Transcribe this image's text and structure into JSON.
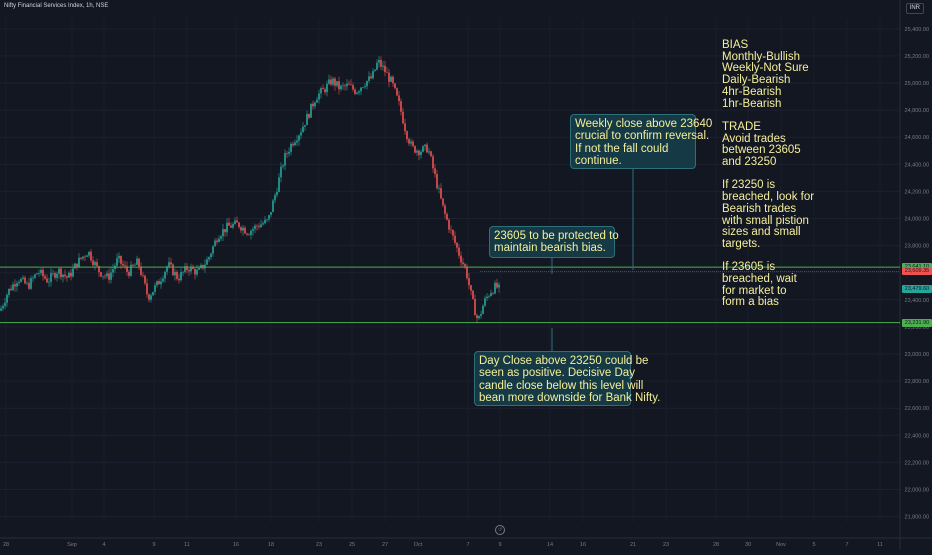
{
  "header": {
    "title": "Nifty Financial Services Index, 1h, NSE",
    "currency": "INR"
  },
  "colors": {
    "background": "#131722",
    "up": "#26a69a",
    "down": "#ef5350",
    "level_line": "#4caf50",
    "note_bg": "#153a45",
    "note_text": "#f5ef9a"
  },
  "notes": {
    "weekly": [
      "Weekly close above 23640",
      "crucial to confirm reversal.",
      "If not the fall could",
      "continue."
    ],
    "protect": [
      "23605 to be protected to",
      "maintain bearish bias."
    ],
    "day": [
      "Day Close above 23250 could be",
      "seen as positive. Decisive Day",
      "candle close below this level will",
      "bean more downside for Bank Nifty."
    ]
  },
  "bias_lines": [
    "BIAS",
    "Monthly-Bullish",
    "Weekly-Not Sure",
    "Daily-Bearish",
    "4hr-Bearish",
    "1hr-Bearish",
    "",
    "TRADE",
    "Avoid trades",
    "between 23605",
    "and 23250",
    "",
    "If 23250 is",
    "breached, look for",
    "Bearish trades",
    "with small pistion",
    "sizes and small",
    "targets.",
    "",
    "If 23605 is",
    "breached, wait",
    "for market to",
    "form a bias"
  ],
  "chart_data": {
    "type": "candlestick",
    "y_ticks": [
      "25,400.00",
      "25,200.00",
      "25,000.00",
      "24,800.00",
      "24,600.00",
      "24,400.00",
      "24,200.00",
      "24,000.00",
      "23,800.00",
      "23,600.00",
      "23,400.00",
      "23,200.00",
      "23,000.00",
      "22,800.00",
      "22,600.00",
      "22,400.00",
      "22,200.00",
      "22,000.00",
      "21,800.00"
    ],
    "y_tick_values": [
      25400,
      25200,
      25000,
      24800,
      24600,
      24400,
      24200,
      24000,
      23800,
      23600,
      23400,
      23200,
      23000,
      22800,
      22600,
      22400,
      22200,
      22000,
      21800
    ],
    "x_labels": [
      "28",
      "Sep",
      "4",
      "9",
      "11",
      "16",
      "18",
      "23",
      "25",
      "27",
      "Oct",
      "7",
      "9",
      "14",
      "16",
      "21",
      "23",
      "28",
      "30",
      "Nov",
      "5",
      "7",
      "11"
    ],
    "ylim": [
      21760,
      25480
    ],
    "levels": [
      {
        "value": 23641.1,
        "label": "23,641.10"
      },
      {
        "value": 23231.9,
        "label": "23,231.90"
      }
    ],
    "price_tags": [
      {
        "value": 23609.35,
        "label": "23,609.35",
        "color": "#ef5350"
      },
      {
        "value": 23479.6,
        "label": "23,479.60",
        "color": "#26a69a"
      }
    ],
    "close_path": [
      {
        "t": 0,
        "c": 23320
      },
      {
        "t": 8,
        "c": 23460
      },
      {
        "t": 18,
        "c": 23560
      },
      {
        "t": 28,
        "c": 23500
      },
      {
        "t": 38,
        "c": 23610
      },
      {
        "t": 48,
        "c": 23540
      },
      {
        "t": 58,
        "c": 23620
      },
      {
        "t": 68,
        "c": 23560
      },
      {
        "t": 78,
        "c": 23680
      },
      {
        "t": 88,
        "c": 23760
      },
      {
        "t": 98,
        "c": 23620
      },
      {
        "t": 108,
        "c": 23560
      },
      {
        "t": 118,
        "c": 23700
      },
      {
        "t": 128,
        "c": 23600
      },
      {
        "t": 138,
        "c": 23680
      },
      {
        "t": 148,
        "c": 23420
      },
      {
        "t": 158,
        "c": 23520
      },
      {
        "t": 168,
        "c": 23660
      },
      {
        "t": 178,
        "c": 23560
      },
      {
        "t": 188,
        "c": 23640
      },
      {
        "t": 198,
        "c": 23600
      },
      {
        "t": 208,
        "c": 23700
      },
      {
        "t": 218,
        "c": 23880
      },
      {
        "t": 228,
        "c": 23940
      },
      {
        "t": 238,
        "c": 23960
      },
      {
        "t": 248,
        "c": 23900
      },
      {
        "t": 258,
        "c": 23950
      },
      {
        "t": 268,
        "c": 23980
      },
      {
        "t": 276,
        "c": 24200
      },
      {
        "t": 284,
        "c": 24440
      },
      {
        "t": 292,
        "c": 24560
      },
      {
        "t": 300,
        "c": 24640
      },
      {
        "t": 308,
        "c": 24760
      },
      {
        "t": 316,
        "c": 24900
      },
      {
        "t": 324,
        "c": 24950
      },
      {
        "t": 332,
        "c": 25020
      },
      {
        "t": 340,
        "c": 24960
      },
      {
        "t": 348,
        "c": 24980
      },
      {
        "t": 356,
        "c": 24940
      },
      {
        "t": 364,
        "c": 25000
      },
      {
        "t": 372,
        "c": 25040
      },
      {
        "t": 378,
        "c": 25160
      },
      {
        "t": 384,
        "c": 25100
      },
      {
        "t": 392,
        "c": 25000
      },
      {
        "t": 400,
        "c": 24820
      },
      {
        "t": 406,
        "c": 24640
      },
      {
        "t": 412,
        "c": 24520
      },
      {
        "t": 420,
        "c": 24500
      },
      {
        "t": 428,
        "c": 24520
      },
      {
        "t": 436,
        "c": 24280
      },
      {
        "t": 444,
        "c": 24050
      },
      {
        "t": 452,
        "c": 23880
      },
      {
        "t": 460,
        "c": 23720
      },
      {
        "t": 466,
        "c": 23620
      },
      {
        "t": 472,
        "c": 23400
      },
      {
        "t": 478,
        "c": 23240
      },
      {
        "t": 484,
        "c": 23380
      },
      {
        "t": 490,
        "c": 23460
      },
      {
        "t": 496,
        "c": 23500
      },
      {
        "t": 500,
        "c": 23470
      }
    ]
  }
}
